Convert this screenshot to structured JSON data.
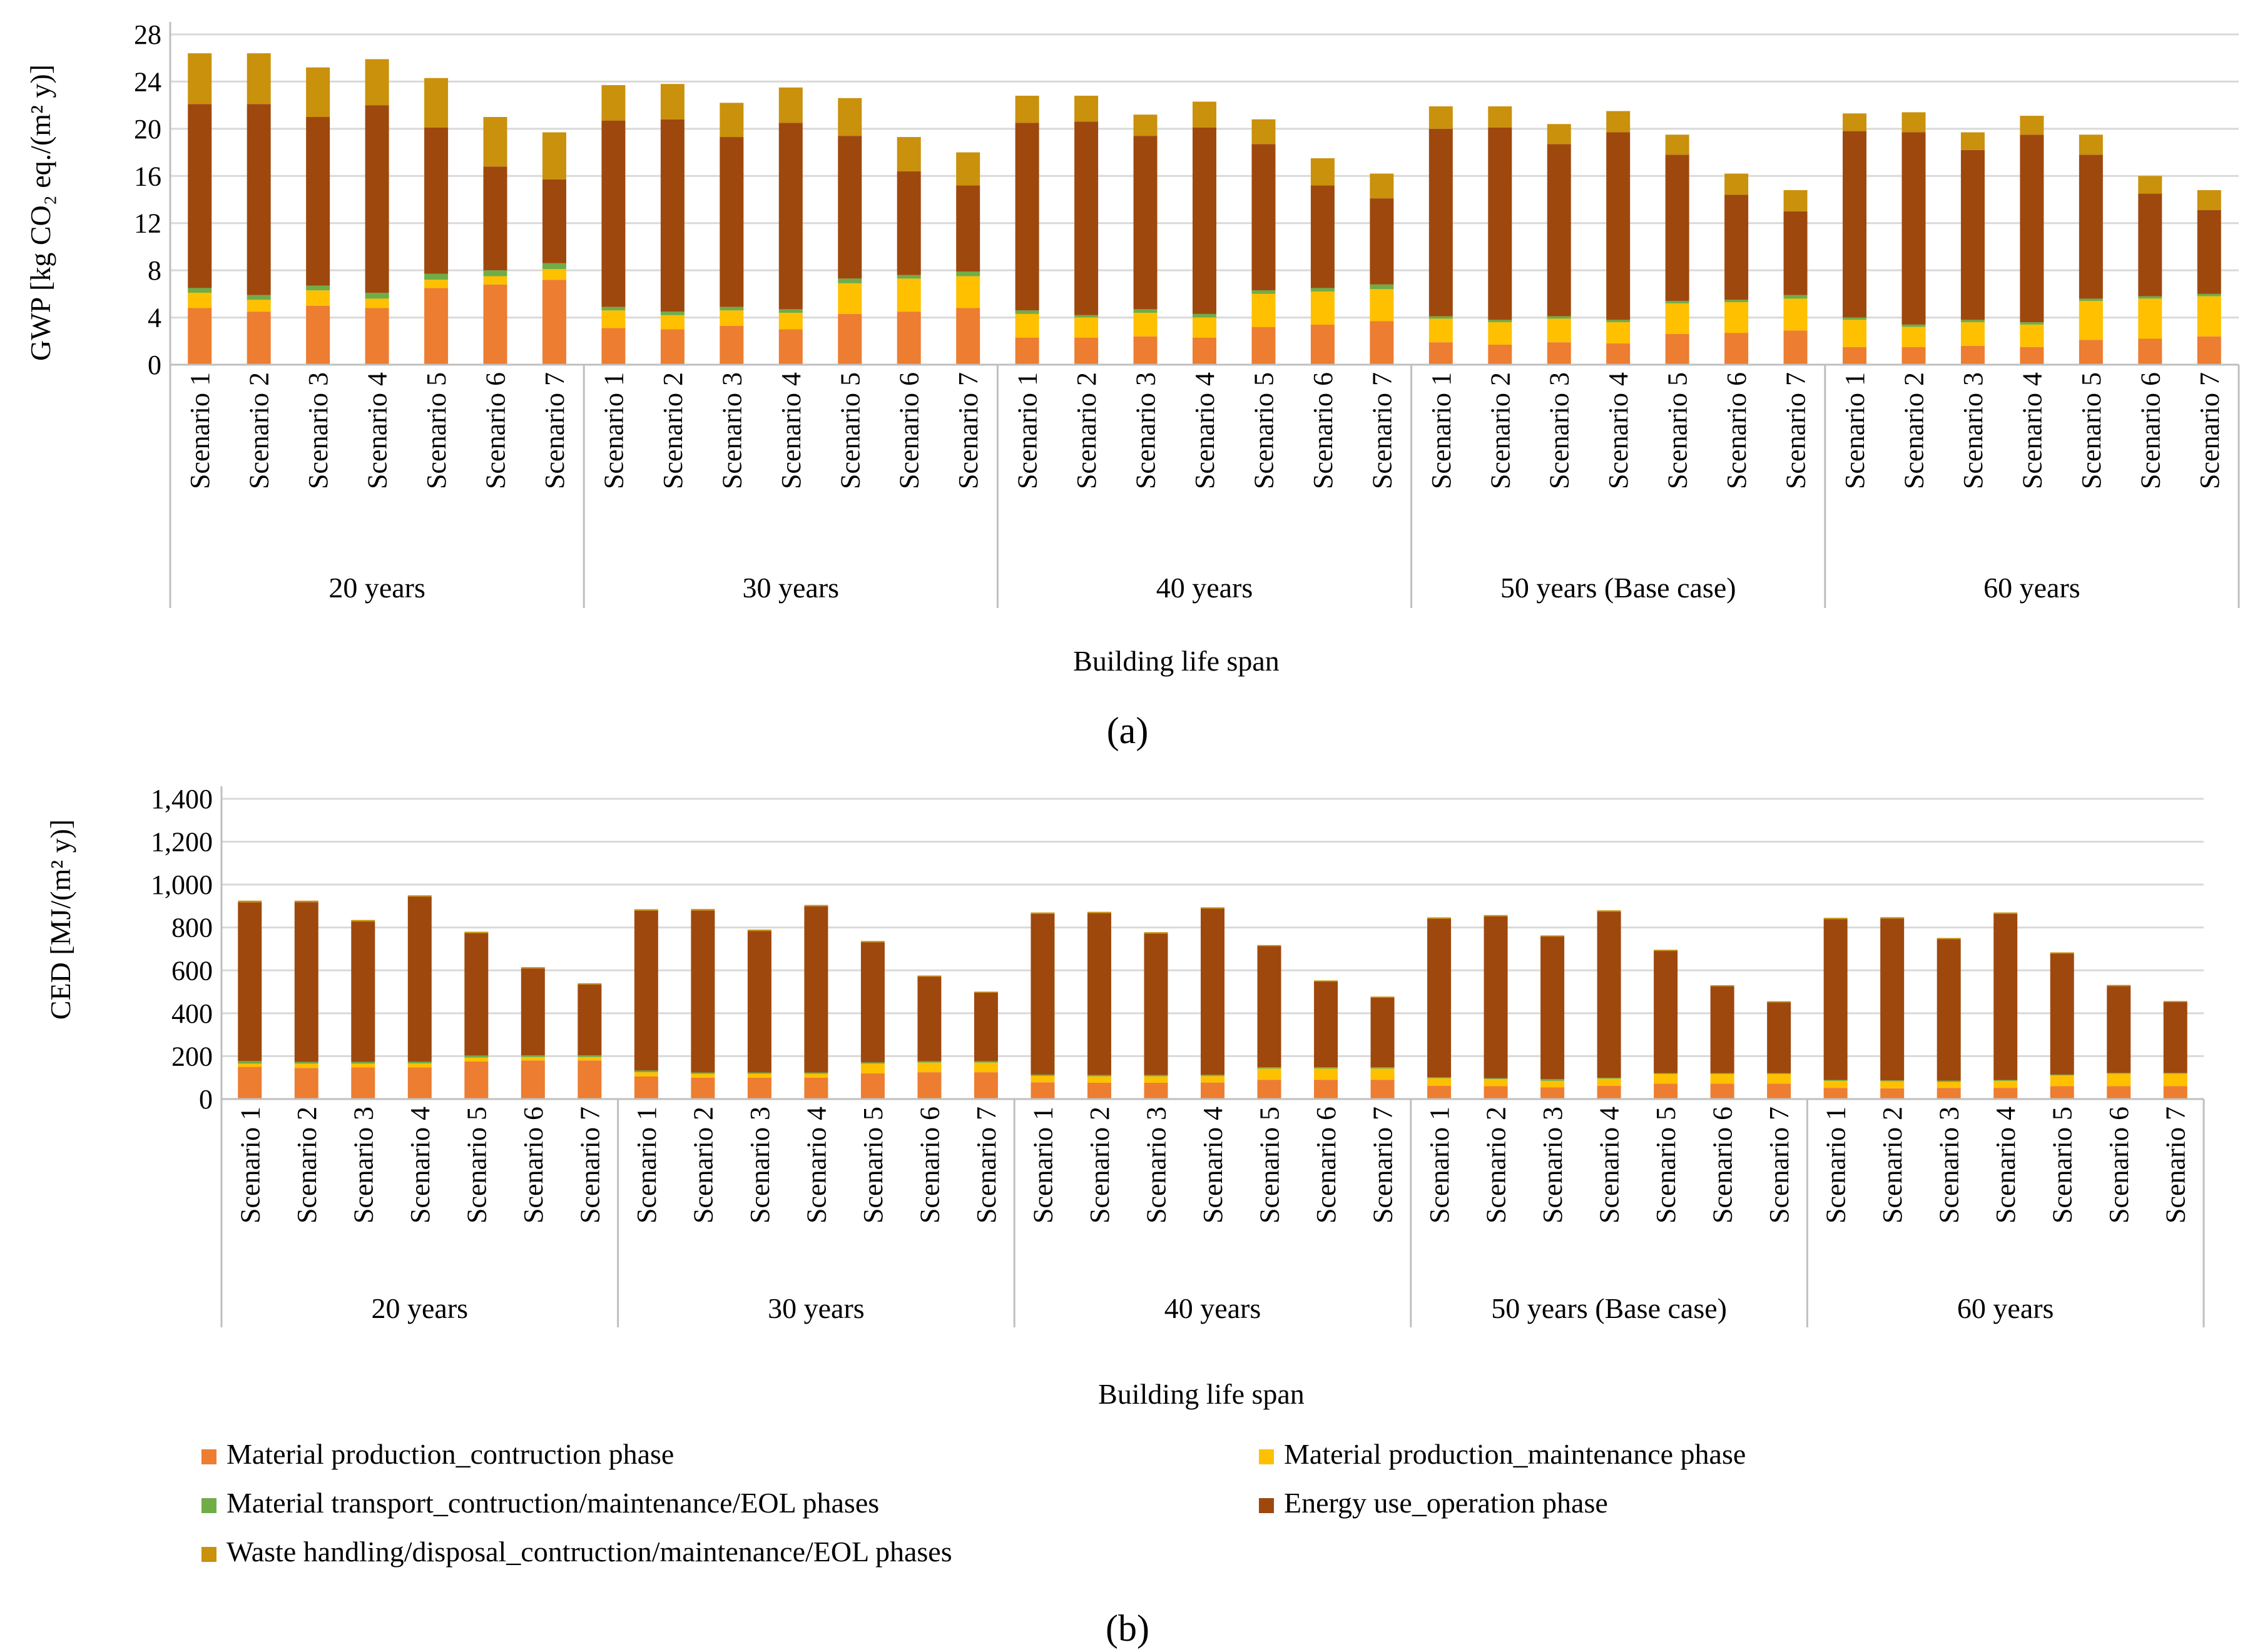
{
  "figure": {
    "panels": [
      "(a)",
      "(b)"
    ]
  },
  "legend": [
    {
      "key": "mp_con",
      "label": "Material production_contruction phase",
      "color": "#ED7D31"
    },
    {
      "key": "mp_main",
      "label": "Material production_maintenance phase",
      "color": "#FFC000"
    },
    {
      "key": "transport",
      "label": "Material transport_contruction/maintenance/EOL phases",
      "color": "#70AD47"
    },
    {
      "key": "energy",
      "label": "Energy use_operation phase",
      "color": "#9E480E"
    },
    {
      "key": "waste",
      "label": "Waste handling/disposal_contruction/maintenance/EOL phases",
      "color": "#C9910C"
    }
  ],
  "chart_data": [
    {
      "id": "gwp",
      "panel": "a",
      "type": "bar",
      "stacked": true,
      "title": "",
      "xlabel": "Building life span",
      "ylabel": "GWP [kg CO₂ eq./(m² y)]",
      "ylim": [
        0,
        28
      ],
      "yticks": [
        "0",
        "4",
        "8",
        "12",
        "16",
        "20",
        "24",
        "28"
      ],
      "groups": [
        "20 years",
        "30 years",
        "40 years",
        "50 years (Base case)",
        "60 years"
      ],
      "categories": [
        "Scenario 1",
        "Scenario 2",
        "Scenario 3",
        "Scenario 4",
        "Scenario 5",
        "Scenario 6",
        "Scenario 7"
      ],
      "series": [
        {
          "name": "Material production_contruction phase",
          "values": [
            [
              4.8,
              4.5,
              5.0,
              4.8,
              6.5,
              6.8,
              7.2
            ],
            [
              3.1,
              3.0,
              3.3,
              3.0,
              4.3,
              4.5,
              4.8
            ],
            [
              2.3,
              2.3,
              2.4,
              2.3,
              3.2,
              3.4,
              3.7
            ],
            [
              1.9,
              1.7,
              1.9,
              1.8,
              2.6,
              2.7,
              2.9
            ],
            [
              1.5,
              1.5,
              1.6,
              1.5,
              2.1,
              2.2,
              2.4
            ]
          ]
        },
        {
          "name": "Material production_maintenance phase",
          "values": [
            [
              1.3,
              1.0,
              1.3,
              0.8,
              0.7,
              0.7,
              0.9
            ],
            [
              1.5,
              1.2,
              1.3,
              1.4,
              2.6,
              2.8,
              2.7
            ],
            [
              2.0,
              1.7,
              2.0,
              1.7,
              2.8,
              2.8,
              2.7
            ],
            [
              2.0,
              1.9,
              2.0,
              1.8,
              2.6,
              2.6,
              2.7
            ],
            [
              2.3,
              1.7,
              2.0,
              1.9,
              3.3,
              3.4,
              3.4
            ]
          ]
        },
        {
          "name": "Material transport_contruction/maintenance/EOL phases",
          "values": [
            [
              0.4,
              0.4,
              0.4,
              0.5,
              0.5,
              0.5,
              0.5
            ],
            [
              0.3,
              0.3,
              0.3,
              0.3,
              0.4,
              0.3,
              0.4
            ],
            [
              0.3,
              0.2,
              0.3,
              0.3,
              0.3,
              0.3,
              0.4
            ],
            [
              0.2,
              0.2,
              0.2,
              0.2,
              0.2,
              0.2,
              0.3
            ],
            [
              0.2,
              0.2,
              0.2,
              0.2,
              0.2,
              0.2,
              0.2
            ]
          ]
        },
        {
          "name": "Energy use_operation phase",
          "values": [
            [
              15.6,
              16.2,
              14.3,
              15.9,
              12.4,
              8.8,
              7.1
            ],
            [
              15.8,
              16.3,
              14.4,
              15.8,
              12.1,
              8.8,
              7.3
            ],
            [
              15.9,
              16.4,
              14.7,
              15.8,
              12.4,
              8.7,
              7.3
            ],
            [
              15.9,
              16.3,
              14.6,
              15.9,
              12.4,
              8.9,
              7.1
            ],
            [
              15.8,
              16.3,
              14.4,
              15.9,
              12.2,
              8.7,
              7.1
            ]
          ]
        },
        {
          "name": "Waste handling/disposal_contruction/maintenance/EOL phases",
          "values": [
            [
              4.3,
              4.3,
              4.2,
              3.9,
              4.2,
              4.2,
              4.0
            ],
            [
              3.0,
              3.0,
              2.9,
              3.0,
              3.2,
              2.9,
              2.8
            ],
            [
              2.3,
              2.2,
              1.8,
              2.2,
              2.1,
              2.3,
              2.1
            ],
            [
              1.9,
              1.8,
              1.7,
              1.8,
              1.7,
              1.8,
              1.8
            ],
            [
              1.5,
              1.7,
              1.5,
              1.6,
              1.7,
              1.5,
              1.7
            ]
          ]
        }
      ]
    },
    {
      "id": "ced",
      "panel": "b",
      "type": "bar",
      "stacked": true,
      "title": "",
      "xlabel": "Building life span",
      "ylabel": "CED [MJ/(m² y)]",
      "ylim": [
        0,
        1400
      ],
      "yticks": [
        "0",
        "200",
        "400",
        "600",
        "800",
        "1,000",
        "1,200",
        "1,400"
      ],
      "groups": [
        "20 years",
        "30 years",
        "40 years",
        "50 years (Base case)",
        "60 years"
      ],
      "categories": [
        "Scenario 1",
        "Scenario 2",
        "Scenario 3",
        "Scenario 4",
        "Scenario 5",
        "Scenario 6",
        "Scenario 7"
      ],
      "series": [
        {
          "name": "Material production_contruction phase",
          "values": [
            [
              150,
              145,
              148,
              148,
              175,
              180,
              180
            ],
            [
              105,
              100,
              100,
              100,
              120,
              125,
              125
            ],
            [
              78,
              76,
              76,
              77,
              90,
              90,
              90
            ],
            [
              62,
              60,
              55,
              62,
              72,
              72,
              72
            ],
            [
              52,
              50,
              52,
              52,
              60,
              60,
              60
            ]
          ]
        },
        {
          "name": "Material production_maintenance phase",
          "values": [
            [
              15,
              20,
              17,
              18,
              18,
              16,
              16
            ],
            [
              20,
              18,
              18,
              18,
              45,
              45,
              45
            ],
            [
              30,
              30,
              30,
              30,
              52,
              52,
              52
            ],
            [
              35,
              33,
              30,
              33,
              45,
              45,
              45
            ],
            [
              33,
              33,
              28,
              33,
              50,
              58,
              58
            ]
          ]
        },
        {
          "name": "Material transport_contruction/maintenance/EOL phases",
          "values": [
            [
              12,
              8,
              8,
              8,
              10,
              8,
              8
            ],
            [
              8,
              6,
              6,
              6,
              6,
              6,
              6
            ],
            [
              6,
              6,
              6,
              6,
              6,
              6,
              6
            ],
            [
              4,
              4,
              8,
              4,
              4,
              4,
              4
            ],
            [
              4,
              4,
              6,
              4,
              4,
              4,
              4
            ]
          ]
        },
        {
          "name": "Energy use_operation phase",
          "values": [
            [
              740,
              745,
              655,
              770,
              570,
              405,
              330
            ],
            [
              745,
              755,
              660,
              775,
              560,
              395,
              320
            ],
            [
              750,
              755,
              660,
              775,
              565,
              400,
              325
            ],
            [
              740,
              755,
              665,
              775,
              570,
              405,
              330
            ],
            [
              750,
              755,
              660,
              775,
              565,
              405,
              330
            ]
          ]
        },
        {
          "name": "Waste handling/disposal_contruction/maintenance/EOL phases",
          "values": [
            [
              8,
              7,
              7,
              6,
              7,
              6,
              6
            ],
            [
              7,
              7,
              6,
              6,
              6,
              5,
              5
            ],
            [
              6,
              6,
              6,
              6,
              5,
              5,
              5
            ],
            [
              6,
              6,
              5,
              6,
              5,
              5,
              5
            ],
            [
              6,
              6,
              5,
              6,
              5,
              5,
              5
            ]
          ]
        }
      ]
    }
  ]
}
